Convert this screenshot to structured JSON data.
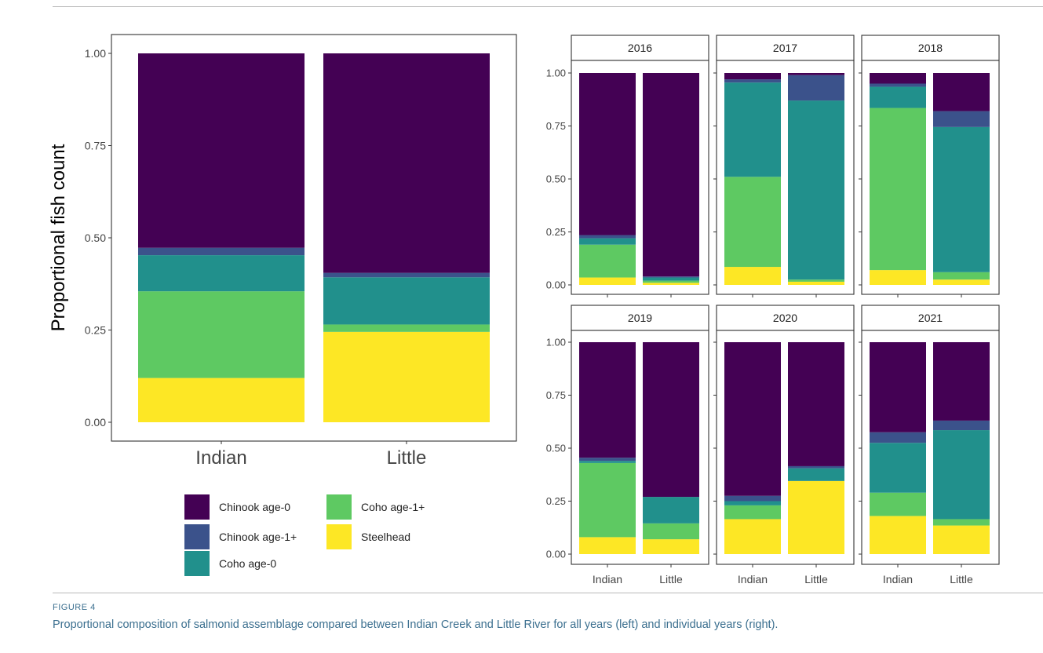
{
  "figure": {
    "label": "FIGURE 4",
    "caption": "Proportional composition of salmonid assemblage compared between Indian Creek and Little River for all years (left) and individual years (right)."
  },
  "colors": {
    "Chinook age-0": "#440154",
    "Chinook age-1+": "#3b528b",
    "Coho age-0": "#21908c",
    "Coho age-1+": "#5ec962",
    "Steelhead": "#fde725"
  },
  "legend": {
    "items": [
      "Chinook age-0",
      "Chinook age-1+",
      "Coho age-0",
      "Coho age-1+",
      "Steelhead"
    ]
  },
  "chart_data": [
    {
      "type": "bar",
      "stacked": true,
      "title": "",
      "xlabel": "",
      "ylabel": "Proportional fish count",
      "ylim": [
        0,
        1
      ],
      "yticks": [
        "0.00",
        "0.25",
        "0.50",
        "0.75",
        "1.00"
      ],
      "categories": [
        "Indian",
        "Little"
      ],
      "series": [
        {
          "name": "Steelhead",
          "values": [
            0.12,
            0.245
          ]
        },
        {
          "name": "Coho age-1+",
          "values": [
            0.235,
            0.02
          ]
        },
        {
          "name": "Coho age-0",
          "values": [
            0.098,
            0.128
          ]
        },
        {
          "name": "Chinook age-1+",
          "values": [
            0.02,
            0.012
          ]
        },
        {
          "name": "Chinook age-0",
          "values": [
            0.527,
            0.595
          ]
        }
      ]
    },
    {
      "type": "bar",
      "stacked": true,
      "facets": true,
      "ylim": [
        0,
        1
      ],
      "yticks": [
        "0.00",
        "0.25",
        "0.50",
        "0.75",
        "1.00"
      ],
      "categories": [
        "Indian",
        "Little"
      ],
      "panels": [
        {
          "title": "2016",
          "series": [
            {
              "name": "Steelhead",
              "values": [
                0.035,
                0.01
              ]
            },
            {
              "name": "Coho age-1+",
              "values": [
                0.155,
                0.01
              ]
            },
            {
              "name": "Coho age-0",
              "values": [
                0.03,
                0.015
              ]
            },
            {
              "name": "Chinook age-1+",
              "values": [
                0.015,
                0.005
              ]
            },
            {
              "name": "Chinook age-0",
              "values": [
                0.765,
                0.96
              ]
            }
          ]
        },
        {
          "title": "2017",
          "series": [
            {
              "name": "Steelhead",
              "values": [
                0.085,
                0.015
              ]
            },
            {
              "name": "Coho age-1+",
              "values": [
                0.425,
                0.01
              ]
            },
            {
              "name": "Coho age-0",
              "values": [
                0.445,
                0.845
              ]
            },
            {
              "name": "Chinook age-1+",
              "values": [
                0.015,
                0.12
              ]
            },
            {
              "name": "Chinook age-0",
              "values": [
                0.03,
                0.01
              ]
            }
          ]
        },
        {
          "title": "2018",
          "series": [
            {
              "name": "Steelhead",
              "values": [
                0.07,
                0.025
              ]
            },
            {
              "name": "Coho age-1+",
              "values": [
                0.765,
                0.035
              ]
            },
            {
              "name": "Coho age-0",
              "values": [
                0.1,
                0.685
              ]
            },
            {
              "name": "Chinook age-1+",
              "values": [
                0.015,
                0.075
              ]
            },
            {
              "name": "Chinook age-0",
              "values": [
                0.05,
                0.18
              ]
            }
          ]
        },
        {
          "title": "2019",
          "series": [
            {
              "name": "Steelhead",
              "values": [
                0.08,
                0.07
              ]
            },
            {
              "name": "Coho age-1+",
              "values": [
                0.35,
                0.075
              ]
            },
            {
              "name": "Coho age-0",
              "values": [
                0.01,
                0.125
              ]
            },
            {
              "name": "Chinook age-1+",
              "values": [
                0.015,
                0.0
              ]
            },
            {
              "name": "Chinook age-0",
              "values": [
                0.545,
                0.73
              ]
            }
          ]
        },
        {
          "title": "2020",
          "series": [
            {
              "name": "Steelhead",
              "values": [
                0.165,
                0.345
              ]
            },
            {
              "name": "Coho age-1+",
              "values": [
                0.065,
                0.0
              ]
            },
            {
              "name": "Coho age-0",
              "values": [
                0.02,
                0.06
              ]
            },
            {
              "name": "Chinook age-1+",
              "values": [
                0.025,
                0.01
              ]
            },
            {
              "name": "Chinook age-0",
              "values": [
                0.725,
                0.585
              ]
            }
          ]
        },
        {
          "title": "2021",
          "series": [
            {
              "name": "Steelhead",
              "values": [
                0.18,
                0.135
              ]
            },
            {
              "name": "Coho age-1+",
              "values": [
                0.11,
                0.03
              ]
            },
            {
              "name": "Coho age-0",
              "values": [
                0.235,
                0.42
              ]
            },
            {
              "name": "Chinook age-1+",
              "values": [
                0.05,
                0.045
              ]
            },
            {
              "name": "Chinook age-0",
              "values": [
                0.425,
                0.37
              ]
            }
          ]
        }
      ]
    }
  ]
}
